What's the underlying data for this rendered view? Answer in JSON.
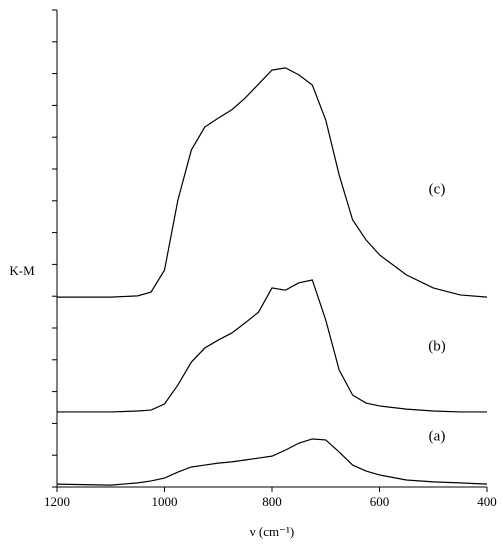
{
  "chart_data": {
    "type": "line",
    "x_label": "ν (cm⁻¹)",
    "y_label": "K-M",
    "x": [
      1200,
      1100,
      1050,
      1025,
      1000,
      975,
      950,
      925,
      900,
      875,
      850,
      825,
      800,
      775,
      750,
      725,
      700,
      675,
      650,
      625,
      600,
      550,
      500,
      450,
      400
    ],
    "series": [
      {
        "name": "(a)",
        "color": "#000000",
        "values": [
          0.09,
          0.06,
          0.13,
          0.19,
          0.28,
          0.47,
          0.63,
          0.69,
          0.75,
          0.79,
          0.85,
          0.91,
          0.97,
          1.16,
          1.38,
          1.51,
          1.48,
          1.1,
          0.69,
          0.5,
          0.38,
          0.22,
          0.16,
          0.13,
          0.09
        ]
      },
      {
        "name": "(b)",
        "color": "#000000",
        "values": [
          2.36,
          2.36,
          2.39,
          2.42,
          2.61,
          3.21,
          3.93,
          4.37,
          4.62,
          4.84,
          5.16,
          5.5,
          6.26,
          6.19,
          6.42,
          6.51,
          5.25,
          3.68,
          2.89,
          2.64,
          2.55,
          2.45,
          2.39,
          2.36,
          2.36
        ]
      },
      {
        "name": "(c)",
        "color": "#000000",
        "values": [
          5.97,
          5.97,
          6.01,
          6.13,
          6.82,
          9.03,
          10.6,
          11.32,
          11.6,
          11.86,
          12.23,
          12.67,
          13.11,
          13.18,
          12.96,
          12.64,
          11.54,
          9.81,
          8.4,
          7.77,
          7.3,
          6.67,
          6.26,
          6.04,
          5.97
        ]
      }
    ],
    "xlim": [
      1200,
      400
    ],
    "xticks": [
      1200,
      1000,
      800,
      600,
      400
    ],
    "ylim": [
      0,
      15
    ],
    "yticks": [
      0,
      1,
      2,
      3,
      4,
      5,
      6,
      7,
      8,
      9,
      10,
      11,
      12,
      13,
      14,
      15
    ]
  }
}
